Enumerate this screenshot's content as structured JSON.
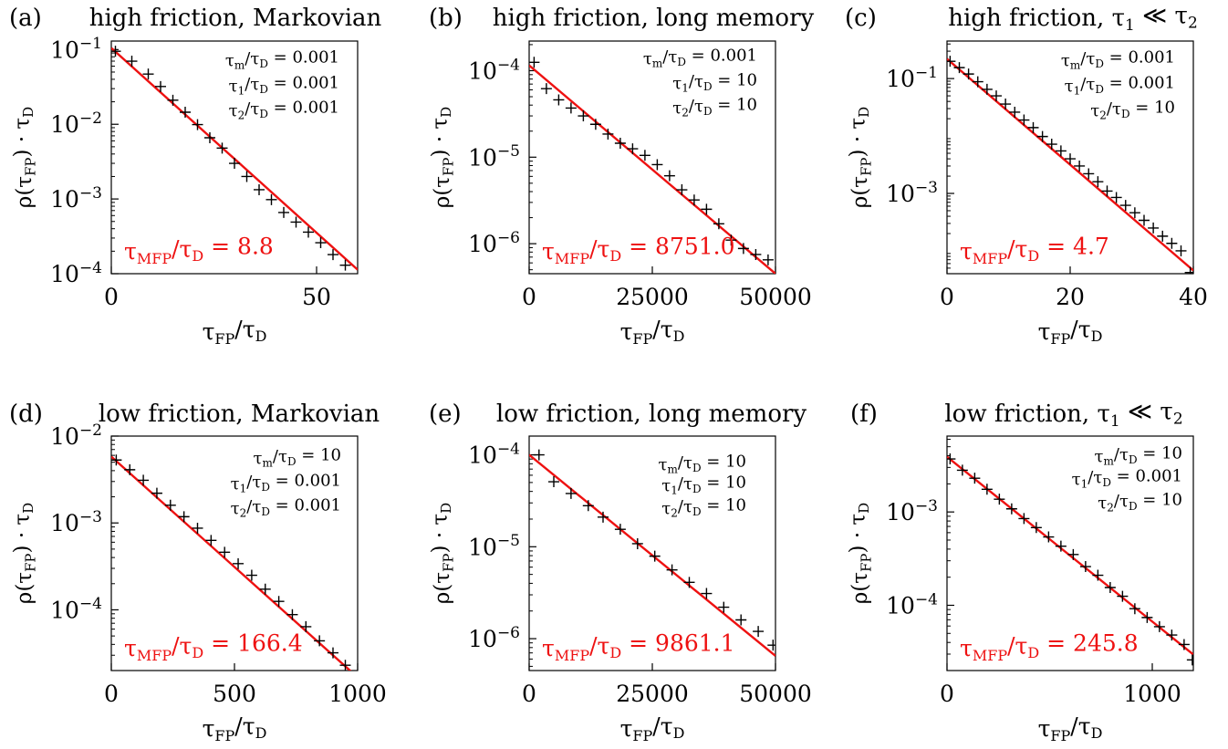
{
  "chart_data": [
    {
      "type": "scatter",
      "panel_label": "(a)",
      "title": "high friction, Markovian",
      "xlabel": "τFP/τD",
      "ylabel": "ρ(τFP) · τD",
      "x_scale": "linear",
      "y_scale": "log",
      "xlim": [
        0,
        60
      ],
      "ylim": [
        0.0001,
        0.13
      ],
      "xticks": [
        {
          "v": 0,
          "label": "0"
        },
        {
          "v": 50,
          "label": "50"
        }
      ],
      "yticks": [
        {
          "v": 0.1,
          "base": "10",
          "exp": "−1"
        },
        {
          "v": 0.01,
          "base": "10",
          "exp": "−2"
        },
        {
          "v": 0.001,
          "base": "10",
          "exp": "−3"
        },
        {
          "v": 0.0001,
          "base": "10",
          "exp": "−4"
        }
      ],
      "params": [
        "τm/τD = 0.001",
        "τ1/τD = 0.001",
        "τ2/τD = 0.001"
      ],
      "mfp_label": "τMFP/τD = 8.8",
      "fit_line": {
        "x": [
          0,
          60
        ],
        "y": [
          0.105,
          0.000113
        ]
      },
      "markers": {
        "x": [
          1,
          5,
          9,
          12,
          15,
          18,
          21,
          24,
          27,
          30,
          33,
          36,
          39,
          42,
          45,
          48,
          51,
          54,
          57
        ],
        "y": [
          0.095,
          0.07,
          0.047,
          0.032,
          0.021,
          0.0145,
          0.0099,
          0.0066,
          0.0048,
          0.003,
          0.002,
          0.00133,
          0.00098,
          0.00066,
          0.00049,
          0.00036,
          0.00026,
          0.00018,
          0.00013
        ]
      },
      "colors": {
        "line": "#ee1111",
        "markers": "#000000"
      }
    },
    {
      "type": "scatter",
      "panel_label": "(b)",
      "title": "high friction, long memory",
      "xlabel": "τFP/τD",
      "ylabel": "ρ(τFP) · τD",
      "x_scale": "linear",
      "y_scale": "log",
      "xlim": [
        0,
        50000
      ],
      "ylim": [
        4.5e-07,
        0.00022
      ],
      "xticks": [
        {
          "v": 0,
          "label": "0"
        },
        {
          "v": 25000,
          "label": "25000"
        },
        {
          "v": 50000,
          "label": "50000"
        }
      ],
      "yticks": [
        {
          "v": 0.0001,
          "base": "10",
          "exp": "−4"
        },
        {
          "v": 1e-05,
          "base": "10",
          "exp": "−5"
        },
        {
          "v": 1e-06,
          "base": "10",
          "exp": "−6"
        }
      ],
      "params": [
        "τm/τD = 0.001",
        "τ1/τD = 10",
        "τ2/τD = 10"
      ],
      "mfp_label": "τMFP/τD = 8751.0",
      "fit_line": {
        "x": [
          0,
          50000
        ],
        "y": [
          0.000115,
          4.5e-07
        ]
      },
      "markers": {
        "x": [
          1000,
          3500,
          6000,
          8500,
          11000,
          13500,
          16000,
          18500,
          21000,
          23500,
          26000,
          28500,
          31000,
          33500,
          36000,
          38500,
          41000,
          43500,
          46000,
          48500
        ],
        "y": [
          0.000125,
          6.2e-05,
          4.6e-05,
          3.7e-05,
          3e-05,
          2.4e-05,
          1.85e-05,
          1.45e-05,
          1.25e-05,
          1.05e-05,
          8.2e-06,
          6.1e-06,
          4.2e-06,
          3.2e-06,
          2.5e-06,
          1.7e-06,
          1.1e-06,
          8.8e-07,
          7.5e-07,
          6.5e-07
        ]
      },
      "colors": {
        "line": "#ee1111",
        "markers": "#000000"
      }
    },
    {
      "type": "scatter",
      "panel_label": "(c)",
      "title": "high friction, τ1 ≪ τ2",
      "xlabel": "τFP/τD",
      "ylabel": "ρ(τFP) · τD",
      "x_scale": "linear",
      "y_scale": "log",
      "xlim": [
        0,
        40
      ],
      "ylim": [
        4e-05,
        0.45
      ],
      "xticks": [
        {
          "v": 0,
          "label": "0"
        },
        {
          "v": 20,
          "label": "20"
        },
        {
          "v": 40,
          "label": "40"
        }
      ],
      "yticks": [
        {
          "v": 0.1,
          "base": "10",
          "exp": "−1"
        },
        {
          "v": 0.001,
          "base": "10",
          "exp": "−3"
        }
      ],
      "params": [
        "τm/τD = 0.001",
        "τ1/τD = 0.001",
        "τ2/τD = 10"
      ],
      "mfp_label": "τMFP/τD = 4.7",
      "fit_line": {
        "x": [
          0,
          40
        ],
        "y": [
          0.22,
          4.55e-05
        ]
      },
      "markers": {
        "x": [
          0.5,
          2,
          3.5,
          5,
          6.5,
          8,
          9.5,
          11,
          12.5,
          14,
          15.5,
          17,
          18.5,
          20,
          21.5,
          23,
          24.5,
          26,
          27.5,
          29,
          30.5,
          32,
          33.5,
          35,
          36.5,
          38,
          39.5
        ],
        "y": [
          0.2,
          0.155,
          0.12,
          0.088,
          0.065,
          0.05,
          0.036,
          0.026,
          0.019,
          0.014,
          0.0098,
          0.0072,
          0.0055,
          0.004,
          0.003,
          0.0022,
          0.0016,
          0.0011,
          0.00085,
          0.00062,
          0.00046,
          0.00034,
          0.00025,
          0.00018,
          0.000135,
          0.0001,
          4.2e-05
        ]
      },
      "colors": {
        "line": "#ee1111",
        "markers": "#000000"
      }
    },
    {
      "type": "scatter",
      "panel_label": "(d)",
      "title": "low friction, Markovian",
      "xlabel": "τFP/τD",
      "ylabel": "ρ(τFP) · τD",
      "x_scale": "linear",
      "y_scale": "log",
      "xlim": [
        0,
        1000
      ],
      "ylim": [
        2e-05,
        0.01
      ],
      "xticks": [
        {
          "v": 0,
          "label": "0"
        },
        {
          "v": 500,
          "label": "500"
        },
        {
          "v": 1000,
          "label": "1000"
        }
      ],
      "yticks": [
        {
          "v": 0.01,
          "base": "10",
          "exp": "−2"
        },
        {
          "v": 0.001,
          "base": "10",
          "exp": "−3"
        },
        {
          "v": 0.0001,
          "base": "10",
          "exp": "−4"
        }
      ],
      "params": [
        "τm/τD = 10",
        "τ1/τD = 0.001",
        "τ2/τD = 0.001"
      ],
      "mfp_label": "τMFP/τD = 166.4",
      "fit_line": {
        "x": [
          0,
          1000
        ],
        "y": [
          0.0058,
          1.67e-05
        ]
      },
      "markers": {
        "x": [
          20,
          75,
          130,
          185,
          240,
          295,
          350,
          405,
          460,
          515,
          570,
          625,
          680,
          735,
          790,
          845,
          900,
          950
        ],
        "y": [
          0.0053,
          0.0041,
          0.0031,
          0.0022,
          0.0016,
          0.00118,
          0.00087,
          0.00063,
          0.00046,
          0.00034,
          0.00025,
          0.000173,
          0.000125,
          8.8e-05,
          6.4e-05,
          4.4e-05,
          3.2e-05,
          2.3e-05
        ]
      },
      "colors": {
        "line": "#ee1111",
        "markers": "#000000"
      }
    },
    {
      "type": "scatter",
      "panel_label": "(e)",
      "title": "low friction, long memory",
      "xlabel": "τFP/τD",
      "ylabel": "ρ(τFP) · τD",
      "x_scale": "linear",
      "y_scale": "log",
      "xlim": [
        0,
        50000
      ],
      "ylim": [
        4.5e-07,
        0.00016
      ],
      "xticks": [
        {
          "v": 0,
          "label": "0"
        },
        {
          "v": 25000,
          "label": "25000"
        },
        {
          "v": 50000,
          "label": "50000"
        }
      ],
      "yticks": [
        {
          "v": 0.0001,
          "base": "10",
          "exp": "−4"
        },
        {
          "v": 1e-05,
          "base": "10",
          "exp": "−5"
        },
        {
          "v": 1e-06,
          "base": "10",
          "exp": "−6"
        }
      ],
      "params": [
        "τm/τD = 10",
        "τ1/τD = 10",
        "τ2/τD = 10"
      ],
      "mfp_label": "τMFP/τD = 9861.1",
      "fit_line": {
        "x": [
          0,
          50000
        ],
        "y": [
          0.0001,
          6.5e-07
        ]
      },
      "markers": {
        "x": [
          2000,
          5000,
          8500,
          12000,
          15000,
          18500,
          22000,
          25500,
          29000,
          32500,
          36000,
          39500,
          43000,
          46500,
          49500
        ],
        "y": [
          0.0001,
          5.1e-05,
          3.8e-05,
          2.8e-05,
          2.1e-05,
          1.55e-05,
          1.08e-05,
          7.9e-06,
          5.6e-06,
          4.1e-06,
          3.1e-06,
          2.2e-06,
          1.6e-06,
          1.2e-06,
          8.5e-07
        ]
      },
      "colors": {
        "line": "#ee1111",
        "markers": "#000000"
      }
    },
    {
      "type": "scatter",
      "panel_label": "(f)",
      "title": "low friction, τ1 ≪ τ2",
      "xlabel": "τFP/τD",
      "ylabel": "ρ(τFP) · τD",
      "x_scale": "linear",
      "y_scale": "log",
      "xlim": [
        0,
        1200
      ],
      "ylim": [
        2e-05,
        0.0065
      ],
      "xticks": [
        {
          "v": 0,
          "label": "0"
        },
        {
          "v": 1000,
          "label": "1000"
        }
      ],
      "yticks": [
        {
          "v": 0.001,
          "base": "10",
          "exp": "−3"
        },
        {
          "v": 0.0001,
          "base": "10",
          "exp": "−4"
        }
      ],
      "params": [
        "τm/τD = 10",
        "τ1/τD = 0.001",
        "τ2/τD = 10"
      ],
      "mfp_label": "τMFP/τD = 245.8",
      "fit_line": {
        "x": [
          0,
          1200
        ],
        "y": [
          0.0039,
          2.97e-05
        ]
      },
      "markers": {
        "x": [
          15,
          75,
          135,
          195,
          255,
          315,
          375,
          435,
          495,
          555,
          615,
          675,
          735,
          795,
          855,
          915,
          975,
          1035,
          1095,
          1155,
          1195
        ],
        "y": [
          0.0037,
          0.0028,
          0.0023,
          0.00175,
          0.00137,
          0.00108,
          0.00085,
          0.00068,
          0.00054,
          0.00043,
          0.00035,
          0.00026,
          0.00021,
          0.000155,
          0.000125,
          9.2e-05,
          7.4e-05,
          5.9e-05,
          4.8e-05,
          3.8e-05,
          2.6e-05
        ]
      },
      "colors": {
        "line": "#ee1111",
        "markers": "#000000"
      }
    }
  ]
}
